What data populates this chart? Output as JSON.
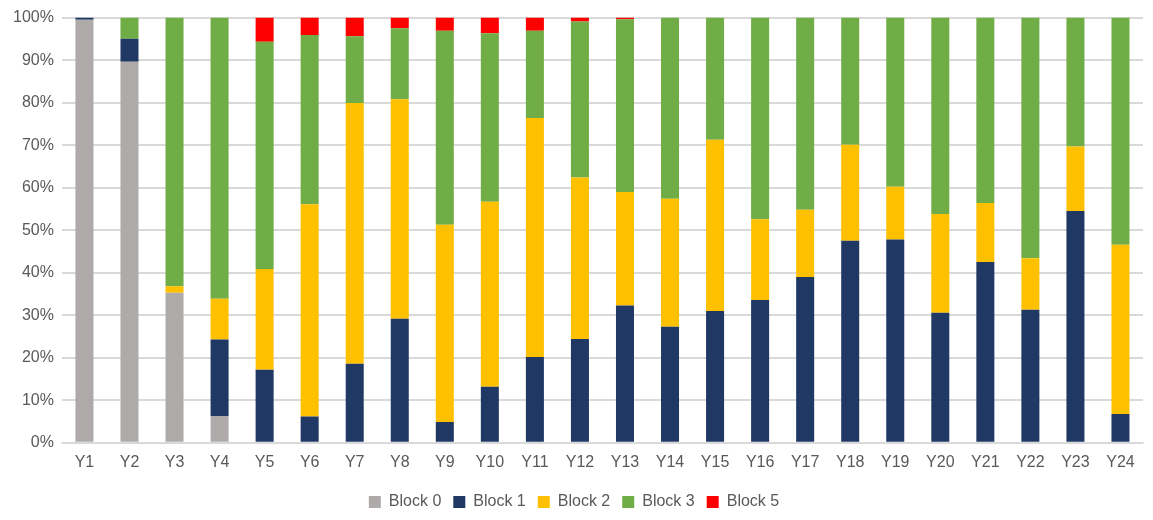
{
  "chart_data": {
    "type": "bar",
    "stacked": true,
    "categories": [
      "Y1",
      "Y2",
      "Y3",
      "Y4",
      "Y5",
      "Y6",
      "Y7",
      "Y8",
      "Y9",
      "Y10",
      "Y11",
      "Y12",
      "Y13",
      "Y14",
      "Y15",
      "Y16",
      "Y17",
      "Y18",
      "Y19",
      "Y20",
      "Y21",
      "Y22",
      "Y23",
      "Y24"
    ],
    "series": [
      {
        "name": "Block 0",
        "color": "#aeaaaa",
        "values": [
          99.5,
          89.6,
          35.3,
          6.3,
          0,
          0,
          0,
          0,
          0,
          0,
          0,
          0,
          0,
          0,
          0,
          0,
          0,
          0,
          0,
          0,
          0,
          0,
          0,
          0
        ]
      },
      {
        "name": "Block 1",
        "color": "#203864",
        "values": [
          0.5,
          5.4,
          0,
          18,
          17.2,
          6.2,
          18.6,
          29.2,
          4.9,
          13.2,
          20.2,
          24.4,
          32.3,
          27.3,
          31,
          33.6,
          39,
          47.5,
          47.8,
          30.6,
          42.5,
          31.3,
          54.5,
          6.8
        ]
      },
      {
        "name": "Block 2",
        "color": "#ffc000",
        "values": [
          0,
          0,
          1.5,
          9.6,
          23.7,
          49.9,
          61.3,
          51.6,
          46.4,
          43.5,
          56.2,
          38,
          26.7,
          30.1,
          40.3,
          19,
          15.8,
          22.6,
          12.4,
          23.2,
          13.9,
          12.1,
          15.2,
          39.8
        ]
      },
      {
        "name": "Block 3",
        "color": "#70ad47",
        "values": [
          0,
          5,
          63.2,
          66.1,
          53.4,
          39.8,
          15.7,
          16.7,
          45.6,
          39.6,
          20.5,
          36.7,
          40.6,
          42.6,
          28.7,
          47.4,
          45.2,
          29.9,
          39.8,
          46.2,
          43.6,
          56.6,
          30.3,
          53.4
        ]
      },
      {
        "name": "Block 5",
        "color": "#ff0000",
        "values": [
          0,
          0,
          0,
          0,
          5.7,
          4.1,
          4.4,
          2.5,
          3.1,
          3.7,
          3.1,
          0.9,
          0.4,
          0,
          0,
          0,
          0,
          0,
          0,
          0,
          0,
          0,
          0,
          0
        ]
      }
    ],
    "ylim": [
      0,
      100
    ],
    "yticks": [
      {
        "value": 0,
        "label": "0%"
      },
      {
        "value": 10,
        "label": "10%"
      },
      {
        "value": 20,
        "label": "20%"
      },
      {
        "value": 30,
        "label": "30%"
      },
      {
        "value": 40,
        "label": "40%"
      },
      {
        "value": 50,
        "label": "50%"
      },
      {
        "value": 60,
        "label": "60%"
      },
      {
        "value": 70,
        "label": "70%"
      },
      {
        "value": 80,
        "label": "80%"
      },
      {
        "value": 90,
        "label": "90%"
      },
      {
        "value": 100,
        "label": "100%"
      }
    ],
    "grid": "y",
    "legend": "bottom"
  }
}
